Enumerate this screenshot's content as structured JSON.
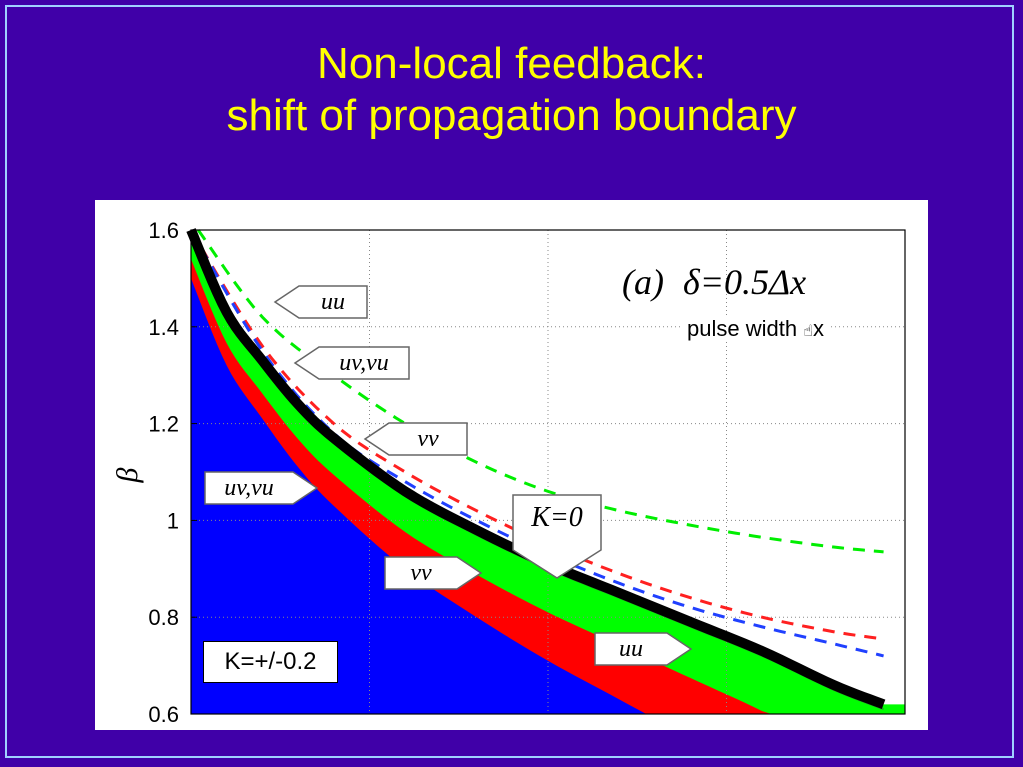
{
  "title": {
    "line1": "Non-local feedback:",
    "line2": "shift of propagation boundary"
  },
  "chart_data": {
    "type": "area",
    "panel_label": "(a)",
    "delta_label": "δ=0.5Δx",
    "ylabel": "β",
    "xlabel": "",
    "ylim": [
      0.6,
      1.6
    ],
    "yticks": [
      "0.6",
      "0.8",
      "1",
      "1.2",
      "1.4",
      "1.6"
    ],
    "grid": true,
    "regions": [
      {
        "name": "blue",
        "color": "#0000ff"
      },
      {
        "name": "red",
        "color": "#ff0000"
      },
      {
        "name": "green",
        "color": "#00ff00"
      }
    ],
    "boundary_K0": {
      "color": "#000000",
      "x": [
        0.0,
        0.05,
        0.1,
        0.15,
        0.2,
        0.3,
        0.4,
        0.5,
        0.6,
        0.7,
        0.8,
        0.9,
        0.97
      ],
      "y": [
        1.6,
        1.43,
        1.33,
        1.24,
        1.17,
        1.06,
        0.98,
        0.91,
        0.85,
        0.79,
        0.73,
        0.66,
        0.62
      ]
    },
    "dashed_curves": [
      {
        "color": "#00ee00",
        "x": [
          0.01,
          0.1,
          0.2,
          0.3,
          0.4,
          0.5,
          0.6,
          0.7,
          0.8,
          0.9,
          0.97
        ],
        "y": [
          1.6,
          1.42,
          1.3,
          1.2,
          1.12,
          1.06,
          1.02,
          0.99,
          0.965,
          0.945,
          0.935
        ]
      },
      {
        "color": "#ff2020",
        "x": [
          0.0,
          0.1,
          0.2,
          0.3,
          0.4,
          0.5,
          0.6,
          0.7,
          0.8,
          0.9,
          0.97
        ],
        "y": [
          1.6,
          1.36,
          1.2,
          1.1,
          1.02,
          0.95,
          0.89,
          0.84,
          0.8,
          0.77,
          0.755
        ]
      },
      {
        "color": "#2040ff",
        "x": [
          0.0,
          0.1,
          0.2,
          0.3,
          0.4,
          0.5,
          0.6,
          0.7,
          0.8,
          0.9,
          0.97
        ],
        "y": [
          1.6,
          1.35,
          1.18,
          1.08,
          1.0,
          0.93,
          0.87,
          0.82,
          0.78,
          0.745,
          0.72
        ]
      }
    ],
    "annotations": [
      "uu",
      "uv,vu",
      "vv",
      "uv,vu",
      "vv",
      "uu",
      "K=0"
    ]
  },
  "notes": {
    "pulse_width_label": "pulse width ",
    "pulse_width_glyph": "☝",
    "pulse_width_suffix": "x",
    "k_label": "K=+/-0.2"
  }
}
